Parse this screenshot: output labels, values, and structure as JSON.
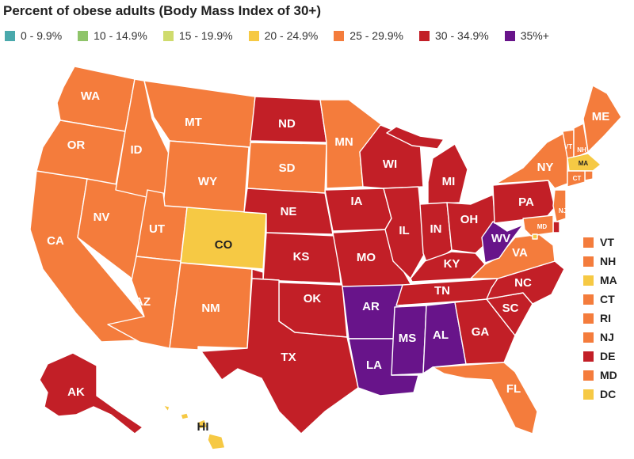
{
  "title": "Percent of obese adults (Body Mass Index of 30+)",
  "colors": {
    "c0": "#4aa9ac",
    "c10": "#8fc46a",
    "c15": "#cfdb6d",
    "c20": "#f6c944",
    "c25": "#f47c3c",
    "c30": "#c21f27",
    "c35": "#68148a"
  },
  "legend": [
    {
      "label": "0 - 9.9%",
      "color": "#4aa9ac"
    },
    {
      "label": "10 - 14.9%",
      "color": "#8fc46a"
    },
    {
      "label": "15 - 19.9%",
      "color": "#cfdb6d"
    },
    {
      "label": "20 - 24.9%",
      "color": "#f6c944"
    },
    {
      "label": "25 - 29.9%",
      "color": "#f47c3c"
    },
    {
      "label": "30 - 34.9%",
      "color": "#c21f27"
    },
    {
      "label": "35%+",
      "color": "#68148a"
    }
  ],
  "states": [
    {
      "abbr": "WA",
      "bin": "25 - 29.9%"
    },
    {
      "abbr": "OR",
      "bin": "25 - 29.9%"
    },
    {
      "abbr": "CA",
      "bin": "25 - 29.9%"
    },
    {
      "abbr": "NV",
      "bin": "25 - 29.9%"
    },
    {
      "abbr": "ID",
      "bin": "25 - 29.9%"
    },
    {
      "abbr": "MT",
      "bin": "25 - 29.9%"
    },
    {
      "abbr": "WY",
      "bin": "25 - 29.9%"
    },
    {
      "abbr": "UT",
      "bin": "25 - 29.9%"
    },
    {
      "abbr": "AZ",
      "bin": "25 - 29.9%"
    },
    {
      "abbr": "CO",
      "bin": "20 - 24.9%"
    },
    {
      "abbr": "NM",
      "bin": "25 - 29.9%"
    },
    {
      "abbr": "ND",
      "bin": "30 - 34.9%"
    },
    {
      "abbr": "SD",
      "bin": "25 - 29.9%"
    },
    {
      "abbr": "NE",
      "bin": "30 - 34.9%"
    },
    {
      "abbr": "KS",
      "bin": "30 - 34.9%"
    },
    {
      "abbr": "OK",
      "bin": "30 - 34.9%"
    },
    {
      "abbr": "TX",
      "bin": "30 - 34.9%"
    },
    {
      "abbr": "MN",
      "bin": "25 - 29.9%"
    },
    {
      "abbr": "IA",
      "bin": "30 - 34.9%"
    },
    {
      "abbr": "MO",
      "bin": "30 - 34.9%"
    },
    {
      "abbr": "AR",
      "bin": "35%+"
    },
    {
      "abbr": "LA",
      "bin": "35%+"
    },
    {
      "abbr": "WI",
      "bin": "30 - 34.9%"
    },
    {
      "abbr": "IL",
      "bin": "30 - 34.9%"
    },
    {
      "abbr": "MI",
      "bin": "30 - 34.9%"
    },
    {
      "abbr": "IN",
      "bin": "30 - 34.9%"
    },
    {
      "abbr": "OH",
      "bin": "30 - 34.9%"
    },
    {
      "abbr": "KY",
      "bin": "30 - 34.9%"
    },
    {
      "abbr": "TN",
      "bin": "30 - 34.9%"
    },
    {
      "abbr": "MS",
      "bin": "35%+"
    },
    {
      "abbr": "AL",
      "bin": "35%+"
    },
    {
      "abbr": "GA",
      "bin": "30 - 34.9%"
    },
    {
      "abbr": "FL",
      "bin": "25 - 29.9%"
    },
    {
      "abbr": "SC",
      "bin": "30 - 34.9%"
    },
    {
      "abbr": "NC",
      "bin": "30 - 34.9%"
    },
    {
      "abbr": "VA",
      "bin": "25 - 29.9%"
    },
    {
      "abbr": "WV",
      "bin": "35%+"
    },
    {
      "abbr": "PA",
      "bin": "30 - 34.9%"
    },
    {
      "abbr": "NY",
      "bin": "25 - 29.9%"
    },
    {
      "abbr": "VT",
      "bin": "25 - 29.9%"
    },
    {
      "abbr": "NH",
      "bin": "25 - 29.9%"
    },
    {
      "abbr": "ME",
      "bin": "25 - 29.9%"
    },
    {
      "abbr": "MA",
      "bin": "20 - 24.9%"
    },
    {
      "abbr": "RI",
      "bin": "25 - 29.9%"
    },
    {
      "abbr": "CT",
      "bin": "25 - 29.9%"
    },
    {
      "abbr": "NJ",
      "bin": "25 - 29.9%"
    },
    {
      "abbr": "DE",
      "bin": "30 - 34.9%"
    },
    {
      "abbr": "MD",
      "bin": "25 - 29.9%"
    },
    {
      "abbr": "DC",
      "bin": "20 - 24.9%"
    },
    {
      "abbr": "AK",
      "bin": "30 - 34.9%"
    },
    {
      "abbr": "HI",
      "bin": "20 - 24.9%"
    }
  ],
  "side_list": [
    {
      "abbr": "VT",
      "color": "#f47c3c"
    },
    {
      "abbr": "NH",
      "color": "#f47c3c"
    },
    {
      "abbr": "MA",
      "color": "#f6c944"
    },
    {
      "abbr": "CT",
      "color": "#f47c3c"
    },
    {
      "abbr": "RI",
      "color": "#f47c3c"
    },
    {
      "abbr": "NJ",
      "color": "#f47c3c"
    },
    {
      "abbr": "DE",
      "color": "#c21f27"
    },
    {
      "abbr": "MD",
      "color": "#f47c3c"
    },
    {
      "abbr": "DC",
      "color": "#f6c944"
    }
  ]
}
